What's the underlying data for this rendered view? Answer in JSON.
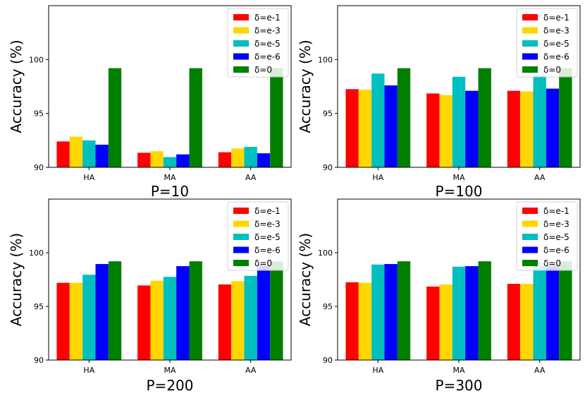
{
  "series_colors": [
    "#ff0000",
    "#ffd700",
    "#00bfbf",
    "#0000ff",
    "#008000"
  ],
  "chart_data": [
    {
      "type": "bar",
      "title": "P=10",
      "ylabel": "Accuracy (%)",
      "categories": [
        "HA",
        "MA",
        "AA"
      ],
      "ylim": [
        90,
        105
      ],
      "yticks": [
        90,
        95,
        100
      ],
      "legend_position": "top-right",
      "series": [
        {
          "name": "δ=e-1",
          "values": [
            92.4,
            91.35,
            91.4
          ]
        },
        {
          "name": "δ=e-3",
          "values": [
            92.85,
            91.5,
            91.75
          ]
        },
        {
          "name": "δ=e-5",
          "values": [
            92.5,
            90.95,
            91.9
          ]
        },
        {
          "name": "δ=e-6",
          "values": [
            92.1,
            91.2,
            91.3
          ]
        },
        {
          "name": "δ=0",
          "values": [
            99.2,
            99.2,
            99.2
          ]
        }
      ]
    },
    {
      "type": "bar",
      "title": "P=100",
      "ylabel": "Accuracy (%)",
      "categories": [
        "HA",
        "MA",
        "AA"
      ],
      "ylim": [
        90,
        105
      ],
      "yticks": [
        90,
        95,
        100
      ],
      "legend_position": "top-right",
      "series": [
        {
          "name": "δ=e-1",
          "values": [
            97.25,
            96.85,
            97.1
          ]
        },
        {
          "name": "δ=e-3",
          "values": [
            97.2,
            96.7,
            97.05
          ]
        },
        {
          "name": "δ=e-5",
          "values": [
            98.7,
            98.4,
            98.55
          ]
        },
        {
          "name": "δ=e-6",
          "values": [
            97.6,
            97.1,
            97.3
          ]
        },
        {
          "name": "δ=0",
          "values": [
            99.2,
            99.2,
            99.2
          ]
        }
      ]
    },
    {
      "type": "bar",
      "title": "P=200",
      "ylabel": "Accuracy (%)",
      "categories": [
        "HA",
        "MA",
        "AA"
      ],
      "ylim": [
        90,
        105
      ],
      "yticks": [
        90,
        95,
        100
      ],
      "legend_position": "top-right",
      "series": [
        {
          "name": "δ=e-1",
          "values": [
            97.2,
            96.95,
            97.05
          ]
        },
        {
          "name": "δ=e-3",
          "values": [
            97.2,
            97.4,
            97.35
          ]
        },
        {
          "name": "δ=e-5",
          "values": [
            97.95,
            97.75,
            97.85
          ]
        },
        {
          "name": "δ=e-6",
          "values": [
            98.95,
            98.75,
            98.85
          ]
        },
        {
          "name": "δ=0",
          "values": [
            99.2,
            99.2,
            99.2
          ]
        }
      ]
    },
    {
      "type": "bar",
      "title": "P=300",
      "ylabel": "Accuracy (%)",
      "categories": [
        "HA",
        "MA",
        "AA"
      ],
      "ylim": [
        90,
        105
      ],
      "yticks": [
        90,
        95,
        100
      ],
      "legend_position": "top-right",
      "series": [
        {
          "name": "δ=e-1",
          "values": [
            97.25,
            96.85,
            97.1
          ]
        },
        {
          "name": "δ=e-3",
          "values": [
            97.2,
            97.05,
            97.1
          ]
        },
        {
          "name": "δ=e-5",
          "values": [
            98.9,
            98.7,
            98.8
          ]
        },
        {
          "name": "δ=e-6",
          "values": [
            98.95,
            98.75,
            98.85
          ]
        },
        {
          "name": "δ=0",
          "values": [
            99.2,
            99.2,
            99.2
          ]
        }
      ]
    }
  ]
}
